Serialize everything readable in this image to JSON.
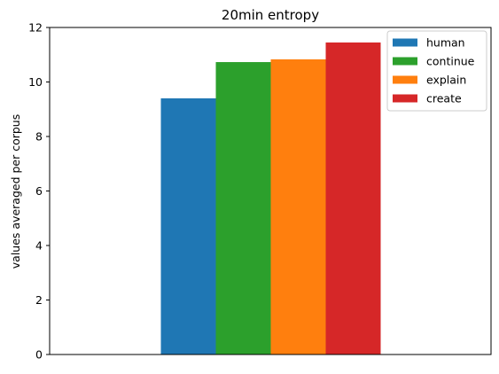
{
  "chart_data": {
    "type": "bar",
    "title": "20min entropy",
    "xlabel": "",
    "ylabel": "values averaged per corpus",
    "categories": [
      ""
    ],
    "ylim": [
      0,
      12
    ],
    "yticks": [
      0,
      2,
      4,
      6,
      8,
      10,
      12
    ],
    "grid": false,
    "legend_position": "top-right",
    "series": [
      {
        "name": "human",
        "values": [
          9.4
        ],
        "color": "#1f77b4"
      },
      {
        "name": "continue",
        "values": [
          10.73
        ],
        "color": "#2ca02c"
      },
      {
        "name": "explain",
        "values": [
          10.83
        ],
        "color": "#ff7f0e"
      },
      {
        "name": "create",
        "values": [
          11.45
        ],
        "color": "#d62728"
      }
    ]
  }
}
